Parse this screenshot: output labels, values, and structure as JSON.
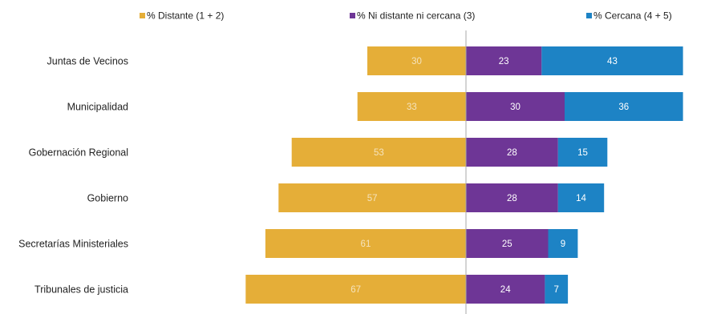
{
  "chart_data": {
    "type": "bar",
    "orientation": "horizontal",
    "layout": "diverging",
    "categories": [
      "Juntas de Vecinos",
      "Municipalidad",
      "Gobernación Regional",
      "Gobierno",
      "Secretarías Ministeriales",
      "Tribunales de justicia"
    ],
    "series": [
      {
        "name": "% Distante (1 + 2)",
        "color": "#E5AE38",
        "direction": "left",
        "values": [
          30,
          33,
          53,
          57,
          61,
          67
        ]
      },
      {
        "name": "% Ni distante ni cercana (3)",
        "color": "#6E3696",
        "direction": "right",
        "values": [
          23,
          30,
          28,
          28,
          25,
          24
        ]
      },
      {
        "name": "% Cercana (4 + 5)",
        "color": "#1D83C5",
        "direction": "right",
        "values": [
          43,
          36,
          15,
          14,
          9,
          7
        ]
      }
    ],
    "value_label_colors": [
      "#F5E3BC",
      "#FFFFFF",
      "#FFFFFF"
    ],
    "legend_position": "top",
    "grid": false
  }
}
